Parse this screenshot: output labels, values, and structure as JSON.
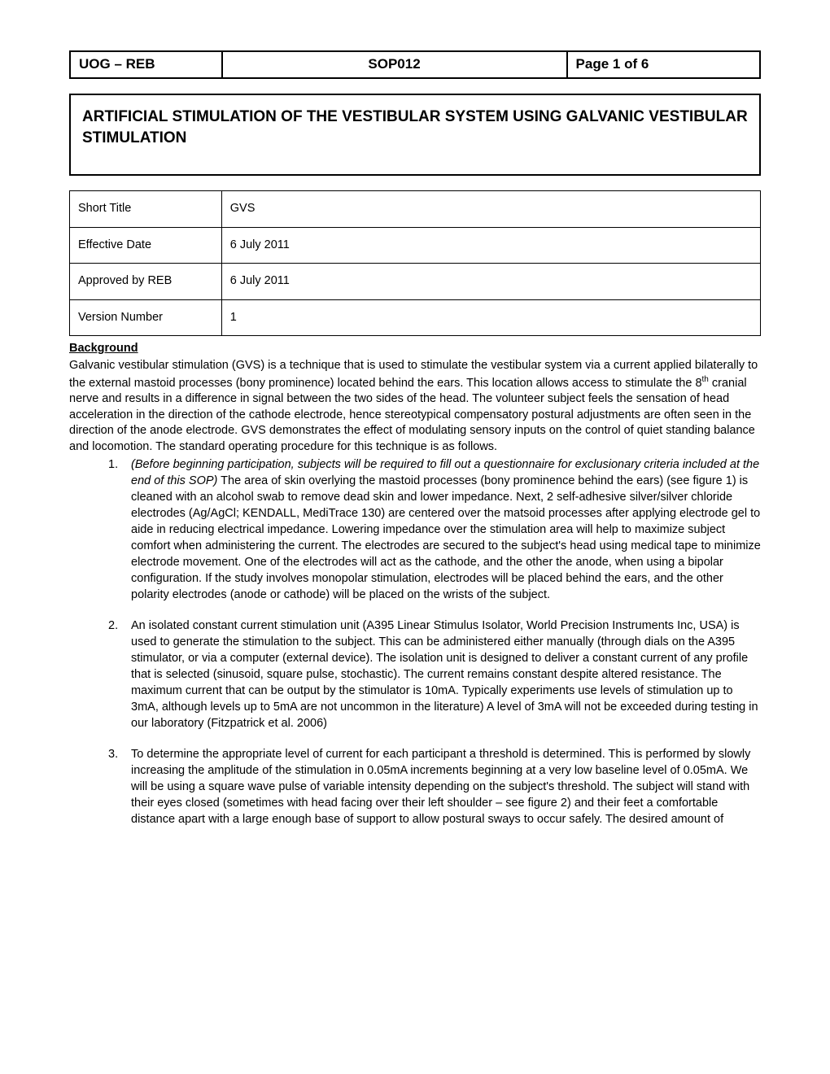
{
  "header": {
    "left": "UOG – REB",
    "center": "SOP012",
    "right": "Page 1 of 6"
  },
  "title": "ARTIFICIAL STIMULATION OF THE VESTIBULAR SYSTEM USING GALVANIC VESTIBULAR STIMULATION",
  "meta": {
    "rows": [
      {
        "label": "Short Title",
        "value": "GVS"
      },
      {
        "label": "Effective Date",
        "value": "6 July 2011"
      },
      {
        "label": "Approved by REB",
        "value": "6 July 2011"
      },
      {
        "label": "Version Number",
        "value": "1"
      }
    ]
  },
  "section": {
    "heading": "Background",
    "intro_pre": "Galvanic vestibular stimulation (GVS) is a technique that is used to stimulate the vestibular system via a current applied bilaterally to the external mastoid processes (bony prominence) located behind the ears. This location allows access to stimulate the 8",
    "intro_sup": "th",
    "intro_post": " cranial nerve and results in a difference in signal between the two sides of the head. The volunteer subject feels the sensation of head acceleration in the direction of the cathode electrode, hence stereotypical compensatory postural adjustments are often seen in the direction of the anode electrode. GVS demonstrates the effect of modulating sensory inputs on the control of quiet standing balance and locomotion. The standard operating procedure for this technique is as follows."
  },
  "list": {
    "item1": {
      "number": "1.",
      "italic": "(Before beginning participation, subjects will be required to fill out a questionnaire for exclusionary criteria included at the end of this SOP)",
      "rest": " The area of skin overlying the mastoid processes (bony prominence behind the ears) (see figure 1) is cleaned with an alcohol swab to remove dead skin and lower impedance. Next, 2 self-adhesive silver/silver chloride electrodes (Ag/AgCl; KENDALL, MediTrace 130) are centered over the matsoid processes after applying electrode gel to aide in reducing electrical impedance. Lowering impedance over the stimulation area will help to maximize subject comfort when administering the current. The electrodes are secured to the subject's head using medical tape to minimize electrode  movement.  One of the electrodes will act as the cathode, and the other the anode, when using a bipolar configuration. If the study involves monopolar stimulation, electrodes will be placed behind the ears, and the other polarity electrodes (anode or cathode) will be placed on the wrists of the subject."
    },
    "item2": {
      "number": "2.",
      "text": "An isolated constant current stimulation unit (A395 Linear Stimulus Isolator, World Precision Instruments Inc, USA) is used to generate the stimulation to the subject. This can be administered either manually (through dials on the A395 stimulator, or via a computer (external device). The isolation unit is designed to deliver a constant current of any profile that is selected (sinusoid, square pulse, stochastic). The current remains constant despite altered resistance. The maximum current that can be output by the stimulator is 10mA. Typically experiments use levels of stimulation up to 3mA, although levels up to 5mA are not uncommon in the literature) A level of 3mA will not be exceeded during testing in our laboratory (Fitzpatrick et al. 2006)"
    },
    "item3": {
      "number": "3.",
      "text": "To determine the appropriate level of current for each participant a threshold is determined. This is performed by slowly increasing the amplitude of the stimulation in 0.05mA increments beginning at a very low baseline level of 0.05mA.  We will be using a square wave pulse of variable intensity depending on the subject's threshold. The subject will stand with their eyes closed (sometimes with head facing over their left shoulder – see figure 2) and their feet a comfortable distance apart with a large enough base of support to allow postural sways to occur safely. The desired amount of"
    }
  }
}
